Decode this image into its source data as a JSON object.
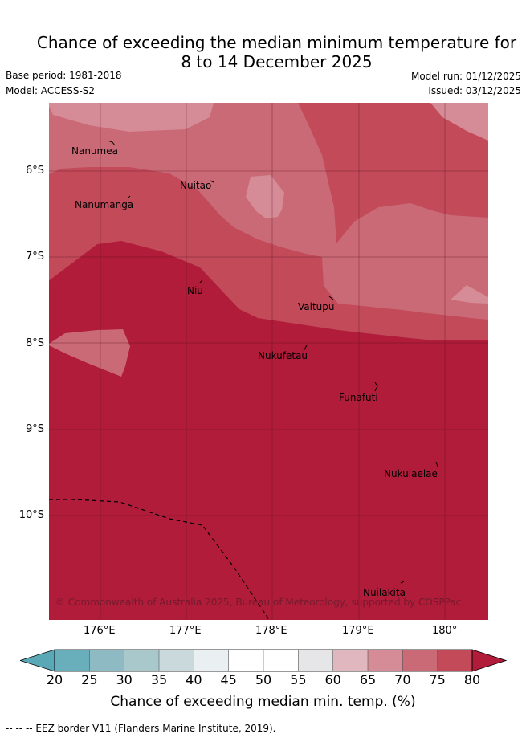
{
  "title_line1": "Chance of exceeding the median minimum temperature for",
  "title_line2": "8 to 14 December 2025",
  "base_period": "Base period: 1981-2018",
  "model": "Model: ACCESS-S2",
  "model_run": "Model run: 01/12/2025",
  "issued": "Issued: 03/12/2025",
  "lat_ticks": [
    "6°S",
    "7°S",
    "8°S",
    "9°S",
    "10°S"
  ],
  "lon_ticks": [
    "176°E",
    "177°E",
    "178°E",
    "179°E",
    "180°"
  ],
  "places": {
    "nanumea": "Nanumea",
    "nuitao": "Nuitao",
    "nanumanga": "Nanumanga",
    "niu": "Niu",
    "vaitupu": "Vaitupu",
    "nukufetau": "Nukufetau",
    "funafuti": "Funafuti",
    "nukulaelae": "Nukulaelae",
    "nuilakita": "Nuilakita"
  },
  "copyright": "© Commonwealth of Australia 2025, Bureau of Meteorology, supported by COSPPac",
  "colorbar": {
    "labels": [
      "20",
      "25",
      "30",
      "35",
      "40",
      "45",
      "50",
      "55",
      "60",
      "65",
      "70",
      "75",
      "80"
    ],
    "colors": [
      "#69aebb",
      "#8ebac4",
      "#a9c8cc",
      "#c9d9dc",
      "#eaf0f2",
      "#ffffff",
      "#ffffff",
      "#e6e6e8",
      "#e0b6bf",
      "#d68c96",
      "#c96a76",
      "#c24a59"
    ],
    "under_color": "#5aa7b5",
    "over_color": "#b01c3a",
    "title": "Chance of exceeding median min. temp. (%)"
  },
  "footer": "--  --  -- EEZ border V11 (Flanders Marine Institute, 2019)."
}
